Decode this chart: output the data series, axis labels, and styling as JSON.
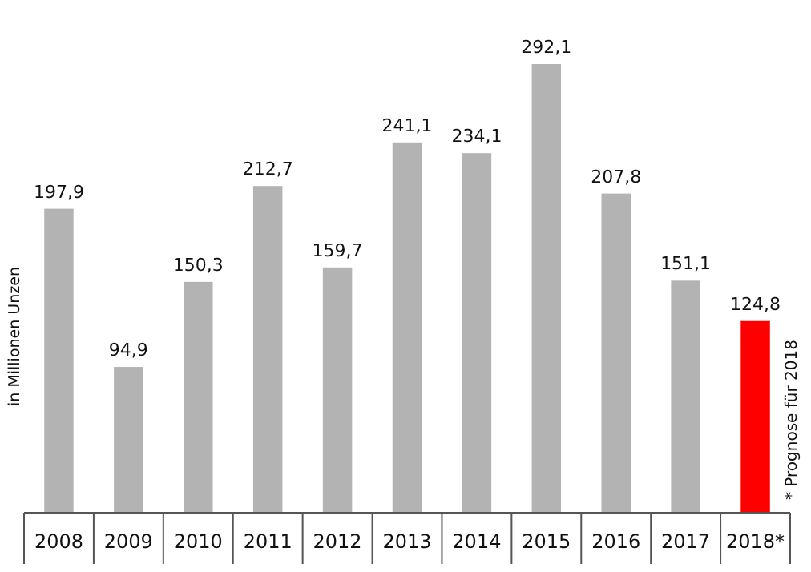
{
  "chart_data": {
    "type": "bar",
    "ylabel": "in Millionen Unzen",
    "categories": [
      "2008",
      "2009",
      "2010",
      "2011",
      "2012",
      "2013",
      "2014",
      "2015",
      "2016",
      "2017",
      "2018*"
    ],
    "values": [
      197.9,
      94.9,
      150.3,
      212.7,
      159.7,
      241.1,
      234.1,
      292.1,
      207.8,
      151.1,
      124.8
    ],
    "colors": [
      "#b3b3b3",
      "#b3b3b3",
      "#b3b3b3",
      "#b3b3b3",
      "#b3b3b3",
      "#b3b3b3",
      "#b3b3b3",
      "#b3b3b3",
      "#b3b3b3",
      "#b3b3b3",
      "#ff0000"
    ],
    "value_labels": [
      "197,9",
      "94,9",
      "150,3",
      "212,7",
      "159,7",
      "241,1",
      "234,1",
      "292,1",
      "207,8",
      "151,1",
      "124,8"
    ],
    "annotations": [
      "* Prognose für 2018"
    ]
  }
}
